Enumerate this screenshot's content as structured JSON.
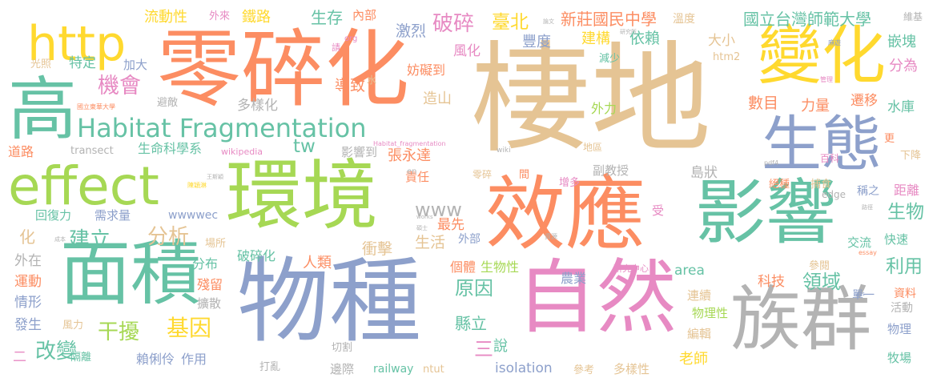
{
  "palette": {
    "teal": "#66c2a5",
    "orange": "#fc8d62",
    "blue": "#8da0cb",
    "pink": "#e78ac3",
    "green": "#a6d854",
    "yellow": "#ffd92f",
    "tan": "#e5c494",
    "gray": "#b3b3b3"
  },
  "words": [
    {
      "text": "棲地",
      "color": "tan"
    },
    {
      "text": "零碎化",
      "color": "orange"
    },
    {
      "text": "環境",
      "color": "green"
    },
    {
      "text": "效應",
      "color": "orange"
    },
    {
      "text": "物種",
      "color": "blue"
    },
    {
      "text": "自然",
      "color": "pink"
    },
    {
      "text": "影響",
      "color": "teal"
    },
    {
      "text": "族群",
      "color": "gray"
    },
    {
      "text": "effect",
      "color": "green"
    },
    {
      "text": "變化",
      "color": "yellow"
    },
    {
      "text": "生態",
      "color": "blue"
    },
    {
      "text": "高",
      "color": "teal"
    },
    {
      "text": "面積",
      "color": "teal"
    },
    {
      "text": "http",
      "color": "yellow"
    },
    {
      "text": "Habitat Fragmentation",
      "color": "teal"
    },
    {
      "text": "破碎",
      "color": "pink"
    },
    {
      "text": "機會",
      "color": "pink"
    },
    {
      "text": "基因",
      "color": "yellow"
    },
    {
      "text": "干擾",
      "color": "green"
    },
    {
      "text": "改變",
      "color": "teal"
    },
    {
      "text": "分析",
      "color": "tan"
    },
    {
      "text": "建立",
      "color": "teal"
    },
    {
      "text": "生物",
      "color": "teal"
    },
    {
      "text": "原因",
      "color": "teal"
    },
    {
      "text": "領域",
      "color": "teal"
    },
    {
      "text": "利用",
      "color": "teal"
    },
    {
      "text": "www",
      "color": "gray"
    },
    {
      "text": "tw",
      "color": "teal"
    },
    {
      "text": "臺北",
      "color": "yellow"
    },
    {
      "text": "新莊國民中學",
      "color": "orange"
    },
    {
      "text": "國立台灣師範大學",
      "color": "teal"
    },
    {
      "text": "流動性",
      "color": "yellow"
    },
    {
      "text": "鐵路",
      "color": "yellow"
    },
    {
      "text": "生存",
      "color": "teal"
    },
    {
      "text": "內部",
      "color": "orange"
    },
    {
      "text": "外來",
      "color": "pink"
    },
    {
      "text": "激烈",
      "color": "blue"
    },
    {
      "text": "豐度",
      "color": "blue"
    },
    {
      "text": "建構",
      "color": "yellow"
    },
    {
      "text": "依賴",
      "color": "teal"
    },
    {
      "text": "溫度",
      "color": "tan"
    },
    {
      "text": "維基",
      "color": "gray"
    },
    {
      "text": "嵌塊",
      "color": "teal"
    },
    {
      "text": "分為",
      "color": "pink"
    },
    {
      "text": "水庫",
      "color": "teal"
    },
    {
      "text": "遷移",
      "color": "orange"
    },
    {
      "text": "力量",
      "color": "orange"
    },
    {
      "text": "數目",
      "color": "orange"
    },
    {
      "text": "大小",
      "color": "tan"
    },
    {
      "text": "風化",
      "color": "pink"
    },
    {
      "text": "妨礙到",
      "color": "orange"
    },
    {
      "text": "加大",
      "color": "blue"
    },
    {
      "text": "特定",
      "color": "teal"
    },
    {
      "text": "光照",
      "color": "tan"
    },
    {
      "text": "避敵",
      "color": "gray"
    },
    {
      "text": "多樣化",
      "color": "gray"
    },
    {
      "text": "導致",
      "color": "orange"
    },
    {
      "text": "造山",
      "color": "tan"
    },
    {
      "text": "外力",
      "color": "green"
    },
    {
      "text": "生命科學系",
      "color": "teal"
    },
    {
      "text": "影響到",
      "color": "gray"
    },
    {
      "text": "道路",
      "color": "orange"
    },
    {
      "text": "transect",
      "color": "gray"
    },
    {
      "text": "張永達",
      "color": "orange"
    },
    {
      "text": "地區",
      "color": "tan"
    },
    {
      "text": "wikipedia",
      "color": "pink"
    },
    {
      "text": "島狀",
      "color": "gray"
    },
    {
      "text": "副教授",
      "color": "gray"
    },
    {
      "text": "下降",
      "color": "tan"
    },
    {
      "text": "百科",
      "color": "pink"
    },
    {
      "text": "責任",
      "color": "orange"
    },
    {
      "text": "零碎",
      "color": "tan"
    },
    {
      "text": "間",
      "color": "orange"
    },
    {
      "text": "增多",
      "color": "pink"
    },
    {
      "text": "捕食",
      "color": "tan"
    },
    {
      "text": "絕種",
      "color": "orange"
    },
    {
      "text": "距離",
      "color": "pink"
    },
    {
      "text": "稱之",
      "color": "blue"
    },
    {
      "text": "edge",
      "color": "gray"
    },
    {
      "text": "受",
      "color": "pink"
    },
    {
      "text": "最先",
      "color": "orange"
    },
    {
      "text": "需求量",
      "color": "blue"
    },
    {
      "text": "回復力",
      "color": "teal"
    },
    {
      "text": "化",
      "color": "tan"
    },
    {
      "text": "生活",
      "color": "tan"
    },
    {
      "text": "外部",
      "color": "blue"
    },
    {
      "text": "wwwwec",
      "color": "blue"
    },
    {
      "text": "交流",
      "color": "teal"
    },
    {
      "text": "快速",
      "color": "teal"
    },
    {
      "text": "外在",
      "color": "gray"
    },
    {
      "text": "場所",
      "color": "tan"
    },
    {
      "text": "分布",
      "color": "teal"
    },
    {
      "text": "破碎化",
      "color": "teal"
    },
    {
      "text": "人類",
      "color": "orange"
    },
    {
      "text": "衝擊",
      "color": "tan"
    },
    {
      "text": "個體",
      "color": "orange"
    },
    {
      "text": "生物性",
      "color": "green"
    },
    {
      "text": "研究中心",
      "color": "pink"
    },
    {
      "text": "area",
      "color": "teal"
    },
    {
      "text": "科技",
      "color": "orange"
    },
    {
      "text": "參閱",
      "color": "tan"
    },
    {
      "text": "資料",
      "color": "orange"
    },
    {
      "text": "單一",
      "color": "blue"
    },
    {
      "text": "運動",
      "color": "orange"
    },
    {
      "text": "情形",
      "color": "blue"
    },
    {
      "text": "殘留",
      "color": "orange"
    },
    {
      "text": "擴散",
      "color": "gray"
    },
    {
      "text": "縣立",
      "color": "teal"
    },
    {
      "text": "農業",
      "color": "blue"
    },
    {
      "text": "連續",
      "color": "tan"
    },
    {
      "text": "活動",
      "color": "gray"
    },
    {
      "text": "物理性",
      "color": "green"
    },
    {
      "text": "編輯",
      "color": "tan"
    },
    {
      "text": "物理",
      "color": "blue"
    },
    {
      "text": "發生",
      "color": "blue"
    },
    {
      "text": "風力",
      "color": "tan"
    },
    {
      "text": "隔離",
      "color": "teal"
    },
    {
      "text": "賴俐伶",
      "color": "blue"
    },
    {
      "text": "作用",
      "color": "blue"
    },
    {
      "text": "三",
      "color": "pink"
    },
    {
      "text": "說",
      "color": "teal"
    },
    {
      "text": "二",
      "color": "pink"
    },
    {
      "text": "切割",
      "color": "gray"
    },
    {
      "text": "isolation",
      "color": "blue"
    },
    {
      "text": "老師",
      "color": "yellow"
    },
    {
      "text": "牧場",
      "color": "teal"
    },
    {
      "text": "打亂",
      "color": "gray"
    },
    {
      "text": "邊際",
      "color": "gray"
    },
    {
      "text": "railway",
      "color": "teal"
    },
    {
      "text": "ntut",
      "color": "tan"
    },
    {
      "text": "參考",
      "color": "tan"
    },
    {
      "text": "多樣性",
      "color": "tan"
    },
    {
      "text": "減少",
      "color": "teal"
    },
    {
      "text": "htm2",
      "color": "tan"
    },
    {
      "text": "請",
      "color": "pink"
    },
    {
      "text": "org",
      "color": "pink"
    },
    {
      "text": "水",
      "color": "tan"
    },
    {
      "text": "國立東華大學",
      "color": "orange"
    },
    {
      "text": "管理",
      "color": "pink"
    },
    {
      "text": "論文",
      "color": "gray"
    },
    {
      "text": "研究所",
      "color": "gray"
    },
    {
      "text": "麻遊",
      "color": "blue"
    },
    {
      "text": "Habitat_fragmentation",
      "color": "pink"
    },
    {
      "text": "wiki",
      "color": "gray"
    },
    {
      "text": "en",
      "color": "gray"
    },
    {
      "text": "pdf4",
      "color": "gray"
    },
    {
      "text": "路徑",
      "color": "gray"
    },
    {
      "text": "陳穎淋",
      "color": "yellow"
    },
    {
      "text": "王斯穎",
      "color": "gray"
    },
    {
      "text": "works",
      "color": "gray"
    },
    {
      "text": "碩士",
      "color": "gray"
    },
    {
      "text": "成本",
      "color": "gray"
    },
    {
      "text": "essay",
      "color": "orange"
    },
    {
      "text": "shs",
      "color": "blue"
    },
    {
      "text": "資源",
      "color": "gray"
    },
    {
      "text": "更",
      "color": "orange"
    }
  ]
}
